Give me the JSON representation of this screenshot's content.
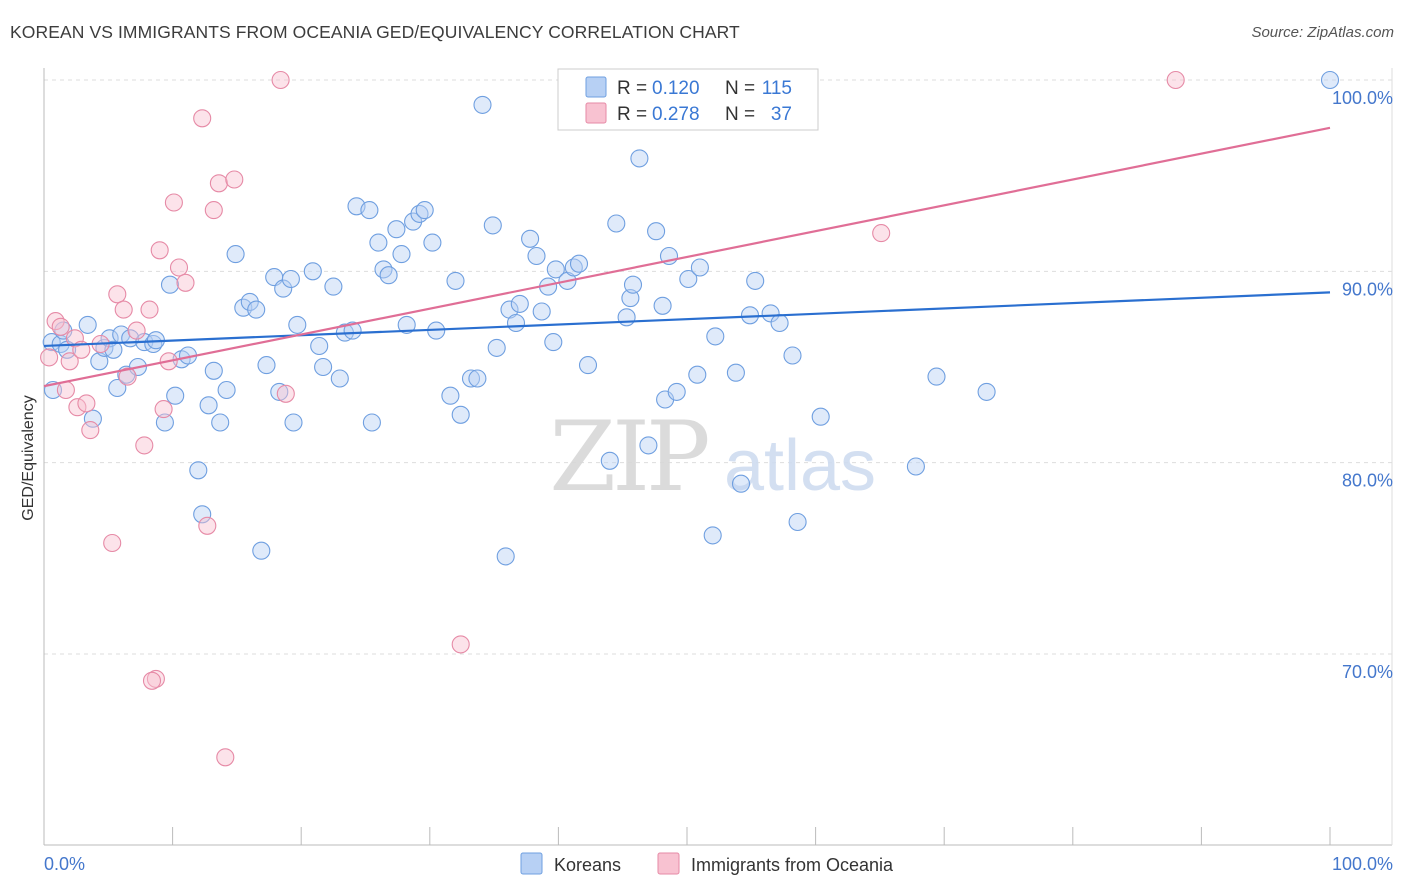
{
  "chart_data": {
    "type": "scatter",
    "title": "KOREAN VS IMMIGRANTS FROM OCEANIA GED/EQUIVALENCY CORRELATION CHART",
    "source": "Source: ZipAtlas.com",
    "xlabel": "",
    "ylabel": "GED/Equivalency",
    "xlim": [
      0,
      100
    ],
    "ylim": [
      60,
      101
    ],
    "x_tick_labels": [
      "0.0%",
      "100.0%"
    ],
    "y_ticks": [
      70,
      80,
      90,
      100
    ],
    "y_tick_labels": [
      "70.0%",
      "80.0%",
      "90.0%",
      "100.0%"
    ],
    "grid": true,
    "watermark": "ZIPatlas",
    "legend": {
      "r_label": "R =",
      "n_label": "N =",
      "entries": [
        {
          "name": "Koreans",
          "r": "0.120",
          "n": "115",
          "color": "#6f9fe0",
          "fill": "#b7d0f4"
        },
        {
          "name": "Immigrants from Oceania",
          "r": "0.278",
          "n": "37",
          "color": "#e68aa6",
          "fill": "#f8c2d1"
        }
      ]
    },
    "series": [
      {
        "name": "Koreans",
        "color": "#6f9fe0",
        "trend_color": "#2a6fd0",
        "trend": {
          "x": [
            0,
            100
          ],
          "y": [
            86.1,
            88.9
          ]
        },
        "points": [
          [
            0.6,
            86.3
          ],
          [
            0.7,
            83.8
          ],
          [
            1.3,
            86.2
          ],
          [
            1.5,
            86.9
          ],
          [
            1.8,
            85.9
          ],
          [
            3.4,
            87.2
          ],
          [
            3.8,
            82.3
          ],
          [
            4.3,
            85.3
          ],
          [
            4.7,
            86.0
          ],
          [
            5.1,
            86.5
          ],
          [
            5.4,
            85.9
          ],
          [
            5.7,
            83.9
          ],
          [
            6.0,
            86.7
          ],
          [
            6.4,
            84.6
          ],
          [
            6.7,
            86.5
          ],
          [
            7.3,
            85.0
          ],
          [
            7.8,
            86.3
          ],
          [
            8.5,
            86.2
          ],
          [
            8.7,
            86.4
          ],
          [
            9.4,
            82.1
          ],
          [
            9.8,
            89.3
          ],
          [
            10.2,
            83.5
          ],
          [
            10.7,
            85.4
          ],
          [
            11.2,
            85.6
          ],
          [
            12.0,
            79.6
          ],
          [
            12.3,
            77.3
          ],
          [
            12.8,
            83.0
          ],
          [
            13.2,
            84.8
          ],
          [
            13.7,
            82.1
          ],
          [
            14.2,
            83.8
          ],
          [
            14.9,
            90.9
          ],
          [
            15.5,
            88.1
          ],
          [
            16.0,
            88.4
          ],
          [
            16.5,
            88.0
          ],
          [
            16.9,
            75.4
          ],
          [
            17.3,
            85.1
          ],
          [
            17.9,
            89.7
          ],
          [
            18.3,
            83.7
          ],
          [
            18.6,
            89.1
          ],
          [
            19.2,
            89.6
          ],
          [
            19.4,
            82.1
          ],
          [
            19.7,
            87.2
          ],
          [
            20.9,
            90.0
          ],
          [
            21.4,
            86.1
          ],
          [
            21.7,
            85.0
          ],
          [
            22.5,
            89.2
          ],
          [
            23.0,
            84.4
          ],
          [
            23.4,
            86.8
          ],
          [
            24.0,
            86.9
          ],
          [
            24.3,
            93.4
          ],
          [
            25.3,
            93.2
          ],
          [
            25.5,
            82.1
          ],
          [
            26.0,
            91.5
          ],
          [
            26.4,
            90.1
          ],
          [
            26.8,
            89.8
          ],
          [
            27.4,
            92.2
          ],
          [
            27.8,
            90.9
          ],
          [
            28.2,
            87.2
          ],
          [
            28.7,
            92.6
          ],
          [
            29.2,
            93.0
          ],
          [
            29.6,
            93.2
          ],
          [
            30.2,
            91.5
          ],
          [
            30.5,
            86.9
          ],
          [
            31.6,
            83.5
          ],
          [
            32.0,
            89.5
          ],
          [
            32.4,
            82.5
          ],
          [
            33.2,
            84.4
          ],
          [
            33.7,
            84.4
          ],
          [
            34.1,
            98.7
          ],
          [
            34.9,
            92.4
          ],
          [
            35.2,
            86.0
          ],
          [
            35.9,
            75.1
          ],
          [
            36.2,
            88.0
          ],
          [
            36.7,
            87.3
          ],
          [
            37.0,
            88.3
          ],
          [
            37.8,
            91.7
          ],
          [
            38.3,
            90.8
          ],
          [
            38.7,
            87.9
          ],
          [
            39.2,
            89.2
          ],
          [
            39.6,
            86.3
          ],
          [
            39.8,
            90.1
          ],
          [
            40.7,
            89.5
          ],
          [
            41.2,
            90.2
          ],
          [
            41.6,
            90.4
          ],
          [
            42.3,
            85.1
          ],
          [
            44.0,
            80.1
          ],
          [
            44.5,
            92.5
          ],
          [
            45.3,
            87.6
          ],
          [
            45.6,
            88.6
          ],
          [
            45.8,
            89.3
          ],
          [
            46.3,
            95.9
          ],
          [
            47.0,
            80.9
          ],
          [
            47.6,
            92.1
          ],
          [
            48.1,
            88.2
          ],
          [
            48.3,
            83.3
          ],
          [
            48.6,
            90.8
          ],
          [
            49.2,
            83.7
          ],
          [
            50.1,
            89.6
          ],
          [
            50.8,
            84.6
          ],
          [
            51.0,
            90.2
          ],
          [
            52.0,
            76.2
          ],
          [
            52.2,
            86.6
          ],
          [
            53.8,
            84.7
          ],
          [
            54.2,
            78.9
          ],
          [
            54.9,
            87.7
          ],
          [
            55.3,
            89.5
          ],
          [
            56.5,
            87.8
          ],
          [
            57.2,
            87.3
          ],
          [
            58.2,
            85.6
          ],
          [
            58.6,
            76.9
          ],
          [
            60.4,
            82.4
          ],
          [
            67.8,
            79.8
          ],
          [
            69.4,
            84.5
          ],
          [
            73.3,
            83.7
          ],
          [
            100.0,
            100.0
          ]
        ]
      },
      {
        "name": "Immigrants from Oceania",
        "color": "#e68aa6",
        "trend_color": "#e06e96",
        "trend": {
          "x": [
            0,
            100
          ],
          "y": [
            84.0,
            97.5
          ]
        },
        "points": [
          [
            0.4,
            85.5
          ],
          [
            0.9,
            87.4
          ],
          [
            1.3,
            87.1
          ],
          [
            1.7,
            83.8
          ],
          [
            2.0,
            85.3
          ],
          [
            2.4,
            86.5
          ],
          [
            2.6,
            82.9
          ],
          [
            2.9,
            85.9
          ],
          [
            3.3,
            83.1
          ],
          [
            3.6,
            81.7
          ],
          [
            4.4,
            86.2
          ],
          [
            5.3,
            75.8
          ],
          [
            5.7,
            88.8
          ],
          [
            6.2,
            88.0
          ],
          [
            6.5,
            84.5
          ],
          [
            7.2,
            86.9
          ],
          [
            7.8,
            80.9
          ],
          [
            8.2,
            88.0
          ],
          [
            8.7,
            68.7
          ],
          [
            9.0,
            91.1
          ],
          [
            9.3,
            82.8
          ],
          [
            9.7,
            85.3
          ],
          [
            10.1,
            93.6
          ],
          [
            10.5,
            90.2
          ],
          [
            11.0,
            89.4
          ],
          [
            12.3,
            98.0
          ],
          [
            12.7,
            76.7
          ],
          [
            13.2,
            93.2
          ],
          [
            13.6,
            94.6
          ],
          [
            14.1,
            64.6
          ],
          [
            14.8,
            94.8
          ],
          [
            18.4,
            100.0
          ],
          [
            18.8,
            83.6
          ],
          [
            32.4,
            70.5
          ],
          [
            65.1,
            92.0
          ],
          [
            88.0,
            100.0
          ],
          [
            8.4,
            68.6
          ]
        ]
      }
    ]
  }
}
